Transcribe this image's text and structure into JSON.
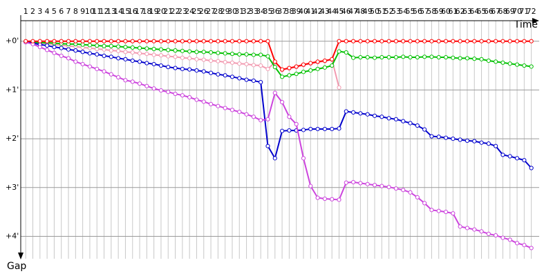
{
  "chart_data": {
    "type": "line",
    "x_label": "Time",
    "y_label": "Gap",
    "x": [
      1,
      2,
      3,
      4,
      5,
      6,
      7,
      8,
      9,
      10,
      11,
      12,
      13,
      14,
      15,
      16,
      17,
      18,
      19,
      20,
      21,
      22,
      23,
      24,
      25,
      26,
      27,
      28,
      29,
      30,
      31,
      32,
      33,
      34,
      35,
      36,
      37,
      38,
      39,
      40,
      41,
      42,
      43,
      44,
      45,
      46,
      47,
      48,
      49,
      50,
      51,
      52,
      53,
      54,
      55,
      56,
      57,
      58,
      59,
      60,
      61,
      62,
      63,
      64,
      65,
      66,
      67,
      68,
      69,
      70,
      71,
      72
    ],
    "xlim": [
      0.3,
      73.1
    ],
    "ylim": [
      -0.42,
      4.46
    ],
    "yticks": [
      {
        "value": 0,
        "label": "+0'"
      },
      {
        "value": 1,
        "label": "+1'"
      },
      {
        "value": 2,
        "label": "+2'"
      },
      {
        "value": 3,
        "label": "+3'"
      },
      {
        "value": 4,
        "label": "+4'"
      }
    ],
    "grid": true,
    "series": [
      {
        "color": "#f29ab0",
        "values": [
          0.01,
          0.02,
          0.04,
          0.05,
          0.07,
          0.08,
          0.1,
          0.11,
          0.13,
          0.14,
          0.16,
          0.17,
          0.19,
          0.2,
          0.22,
          0.23,
          0.25,
          0.26,
          0.28,
          0.29,
          0.31,
          0.32,
          0.34,
          0.35,
          0.37,
          0.38,
          0.4,
          0.41,
          0.43,
          0.44,
          0.46,
          0.47,
          0.49,
          0.5,
          0.57,
          0.43,
          0.59,
          0.56,
          0.53,
          0.49,
          0.46,
          0.43,
          0.41,
          0.38,
          0.95,
          null,
          null,
          null,
          null,
          null,
          null,
          null,
          null,
          null,
          null,
          null,
          null,
          null,
          null,
          null,
          null,
          null,
          null,
          null,
          null,
          null,
          null,
          null,
          null,
          null,
          null,
          null
        ]
      },
      {
        "color": "#00c000",
        "values": [
          0.01,
          0.02,
          0.03,
          0.03,
          0.04,
          0.05,
          0.06,
          0.06,
          0.07,
          0.08,
          0.09,
          0.1,
          0.1,
          0.11,
          0.12,
          0.13,
          0.14,
          0.15,
          0.16,
          0.17,
          0.18,
          0.19,
          0.2,
          0.21,
          0.22,
          0.22,
          0.23,
          0.24,
          0.25,
          0.26,
          0.27,
          0.27,
          0.28,
          0.28,
          0.31,
          0.53,
          0.73,
          0.7,
          0.67,
          0.63,
          0.6,
          0.57,
          0.54,
          0.5,
          0.21,
          0.23,
          0.34,
          0.33,
          0.33,
          0.34,
          0.33,
          0.33,
          0.33,
          0.32,
          0.33,
          0.33,
          0.32,
          0.32,
          0.33,
          0.33,
          0.34,
          0.35,
          0.35,
          0.36,
          0.37,
          0.4,
          0.42,
          0.44,
          0.46,
          0.48,
          0.5,
          0.52
        ]
      },
      {
        "color": "#0000cc",
        "values": [
          0.02,
          0.04,
          0.07,
          0.09,
          0.12,
          0.14,
          0.17,
          0.19,
          0.22,
          0.25,
          0.27,
          0.3,
          0.32,
          0.35,
          0.37,
          0.4,
          0.42,
          0.45,
          0.47,
          0.5,
          0.53,
          0.55,
          0.57,
          0.58,
          0.6,
          0.62,
          0.65,
          0.68,
          0.7,
          0.73,
          0.76,
          0.79,
          0.81,
          0.84,
          2.15,
          2.4,
          1.84,
          1.83,
          1.83,
          1.82,
          1.8,
          1.8,
          1.8,
          1.8,
          1.79,
          1.44,
          1.46,
          1.48,
          1.5,
          1.53,
          1.55,
          1.58,
          1.6,
          1.64,
          1.68,
          1.73,
          1.81,
          1.95,
          1.96,
          1.98,
          2.0,
          2.02,
          2.04,
          2.05,
          2.08,
          2.1,
          2.15,
          2.33,
          2.36,
          2.4,
          2.44,
          2.6
        ]
      },
      {
        "color": "#cc44dd",
        "values": [
          0.02,
          0.06,
          0.12,
          0.18,
          0.24,
          0.3,
          0.35,
          0.42,
          0.47,
          0.52,
          0.57,
          0.62,
          0.68,
          0.74,
          0.8,
          0.83,
          0.87,
          0.92,
          0.97,
          1.01,
          1.04,
          1.08,
          1.11,
          1.15,
          1.2,
          1.24,
          1.29,
          1.33,
          1.37,
          1.41,
          1.45,
          1.5,
          1.55,
          1.62,
          1.6,
          1.06,
          1.25,
          1.55,
          1.7,
          2.4,
          2.97,
          3.21,
          3.23,
          3.24,
          3.25,
          2.9,
          2.89,
          2.91,
          2.93,
          2.95,
          2.97,
          2.99,
          3.02,
          3.05,
          3.1,
          3.2,
          3.32,
          3.46,
          3.48,
          3.5,
          3.53,
          3.8,
          3.83,
          3.86,
          3.9,
          3.95,
          3.98,
          4.03,
          4.07,
          4.14,
          4.18,
          4.24
        ]
      },
      {
        "color": "#ff0000",
        "values": [
          0,
          0,
          0,
          0,
          0,
          0,
          0,
          0,
          0,
          0,
          0,
          0,
          0,
          0,
          0,
          0,
          0,
          0,
          0,
          0,
          0,
          0,
          0,
          0,
          0,
          0,
          0,
          0,
          0,
          0,
          0,
          0,
          0,
          0,
          0,
          0.42,
          0.58,
          0.55,
          0.52,
          0.48,
          0.45,
          0.42,
          0.4,
          0.37,
          0,
          0,
          0,
          0,
          0,
          0,
          0,
          0,
          0,
          0,
          0,
          0,
          0,
          0,
          0,
          0,
          0,
          0,
          0,
          0,
          0,
          0,
          0,
          0,
          0,
          0,
          0,
          0
        ]
      }
    ]
  }
}
